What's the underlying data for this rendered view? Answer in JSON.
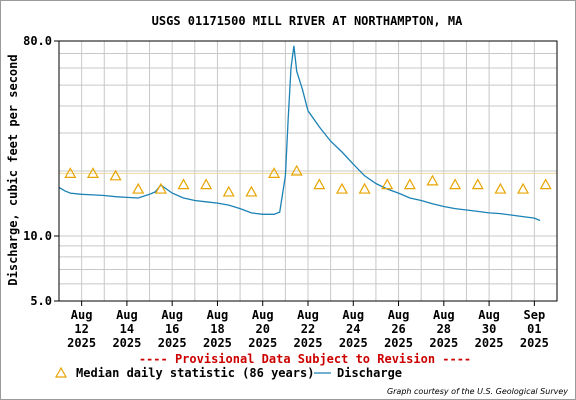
{
  "chart_data": {
    "type": "line",
    "title": "USGS 01171500 MILL RIVER AT NORTHAMPTON, MA",
    "ylabel": "Discharge, cubic feet per second",
    "xlabel": "",
    "yscale": "log",
    "ylim": [
      5.0,
      80.0
    ],
    "xlim": [
      "2025-08-11",
      "2025-09-02"
    ],
    "grid": true,
    "y_ticks": [
      {
        "value": 5.0,
        "label": "5.0"
      },
      {
        "value": 10.0,
        "label": "10.0"
      },
      {
        "value": 80.0,
        "label": "80.0"
      }
    ],
    "x_ticks": [
      {
        "date": "2025-08-12",
        "line1": "Aug",
        "line2": "12",
        "line3": "2025"
      },
      {
        "date": "2025-08-14",
        "line1": "Aug",
        "line2": "14",
        "line3": "2025"
      },
      {
        "date": "2025-08-16",
        "line1": "Aug",
        "line2": "16",
        "line3": "2025"
      },
      {
        "date": "2025-08-18",
        "line1": "Aug",
        "line2": "18",
        "line3": "2025"
      },
      {
        "date": "2025-08-20",
        "line1": "Aug",
        "line2": "20",
        "line3": "2025"
      },
      {
        "date": "2025-08-22",
        "line1": "Aug",
        "line2": "22",
        "line3": "2025"
      },
      {
        "date": "2025-08-24",
        "line1": "Aug",
        "line2": "24",
        "line3": "2025"
      },
      {
        "date": "2025-08-26",
        "line1": "Aug",
        "line2": "26",
        "line3": "2025"
      },
      {
        "date": "2025-08-28",
        "line1": "Aug",
        "line2": "28",
        "line3": "2025"
      },
      {
        "date": "2025-08-30",
        "line1": "Aug",
        "line2": "30",
        "line3": "2025"
      },
      {
        "date": "2025-09-01",
        "line1": "Sep",
        "line2": "01",
        "line3": "2025"
      }
    ],
    "series": [
      {
        "name": "Discharge",
        "kind": "line",
        "color": "#1b82b6",
        "x": [
          "2025-08-11T00:00",
          "2025-08-11T06:00",
          "2025-08-11T12:00",
          "2025-08-12T00:00",
          "2025-08-12T12:00",
          "2025-08-13T00:00",
          "2025-08-13T12:00",
          "2025-08-14T00:00",
          "2025-08-14T12:00",
          "2025-08-15T00:00",
          "2025-08-15T06:00",
          "2025-08-15T12:00",
          "2025-08-16T00:00",
          "2025-08-16T12:00",
          "2025-08-17T00:00",
          "2025-08-17T12:00",
          "2025-08-18T00:00",
          "2025-08-18T12:00",
          "2025-08-19T00:00",
          "2025-08-19T12:00",
          "2025-08-20T00:00",
          "2025-08-20T12:00",
          "2025-08-20T18:00",
          "2025-08-21T00:00",
          "2025-08-21T03:00",
          "2025-08-21T06:00",
          "2025-08-21T09:00",
          "2025-08-21T12:00",
          "2025-08-21T18:00",
          "2025-08-22T00:00",
          "2025-08-22T12:00",
          "2025-08-23T00:00",
          "2025-08-23T12:00",
          "2025-08-24T00:00",
          "2025-08-24T12:00",
          "2025-08-25T00:00",
          "2025-08-25T12:00",
          "2025-08-26T00:00",
          "2025-08-26T12:00",
          "2025-08-27T00:00",
          "2025-08-27T12:00",
          "2025-08-28T00:00",
          "2025-08-28T12:00",
          "2025-08-29T00:00",
          "2025-08-29T12:00",
          "2025-08-30T00:00",
          "2025-08-30T12:00",
          "2025-08-31T00:00",
          "2025-08-31T12:00",
          "2025-09-01T00:00",
          "2025-09-01T06:00"
        ],
        "y": [
          16.8,
          16.2,
          15.8,
          15.6,
          15.5,
          15.4,
          15.2,
          15.1,
          15.0,
          15.6,
          16.0,
          17.2,
          15.8,
          15.0,
          14.6,
          14.4,
          14.2,
          13.9,
          13.4,
          12.8,
          12.6,
          12.6,
          12.9,
          19.0,
          35.0,
          60.0,
          76.0,
          58.0,
          48.0,
          38.0,
          32.0,
          27.5,
          24.5,
          21.5,
          19.0,
          17.5,
          16.5,
          15.8,
          15.0,
          14.6,
          14.1,
          13.7,
          13.4,
          13.2,
          13.0,
          12.8,
          12.7,
          12.5,
          12.3,
          12.1,
          11.8
        ]
      },
      {
        "name": "Median daily statistic (86 years)",
        "kind": "markers",
        "marker": "triangle",
        "color": "#e8a400",
        "x": [
          "2025-08-11T12:00",
          "2025-08-12T12:00",
          "2025-08-13T12:00",
          "2025-08-14T12:00",
          "2025-08-15T12:00",
          "2025-08-16T12:00",
          "2025-08-17T12:00",
          "2025-08-18T12:00",
          "2025-08-19T12:00",
          "2025-08-20T12:00",
          "2025-08-21T12:00",
          "2025-08-22T12:00",
          "2025-08-23T12:00",
          "2025-08-24T12:00",
          "2025-08-25T12:00",
          "2025-08-26T12:00",
          "2025-08-27T12:00",
          "2025-08-28T12:00",
          "2025-08-29T12:00",
          "2025-08-30T12:00",
          "2025-08-31T12:00",
          "2025-09-01T12:00"
        ],
        "y": [
          19.5,
          19.5,
          19.0,
          16.5,
          16.5,
          17.3,
          17.3,
          16.0,
          16.0,
          19.5,
          20.0,
          17.3,
          16.5,
          16.5,
          17.3,
          17.3,
          18.0,
          17.3,
          17.3,
          16.5,
          16.5,
          17.3
        ]
      }
    ],
    "legend": {
      "placement": "bottom",
      "median_label": "Median daily statistic (86 years)",
      "discharge_label": "Discharge"
    },
    "annotations": {
      "provisional": "---- Provisional Data Subject to Revision ----",
      "courtesy": "Graph courtesy of the U.S. Geological Survey"
    },
    "colors": {
      "grid": "#c8c8c8",
      "provisional": "#cc0000",
      "median_reference_line": "#f0d9a0"
    }
  }
}
